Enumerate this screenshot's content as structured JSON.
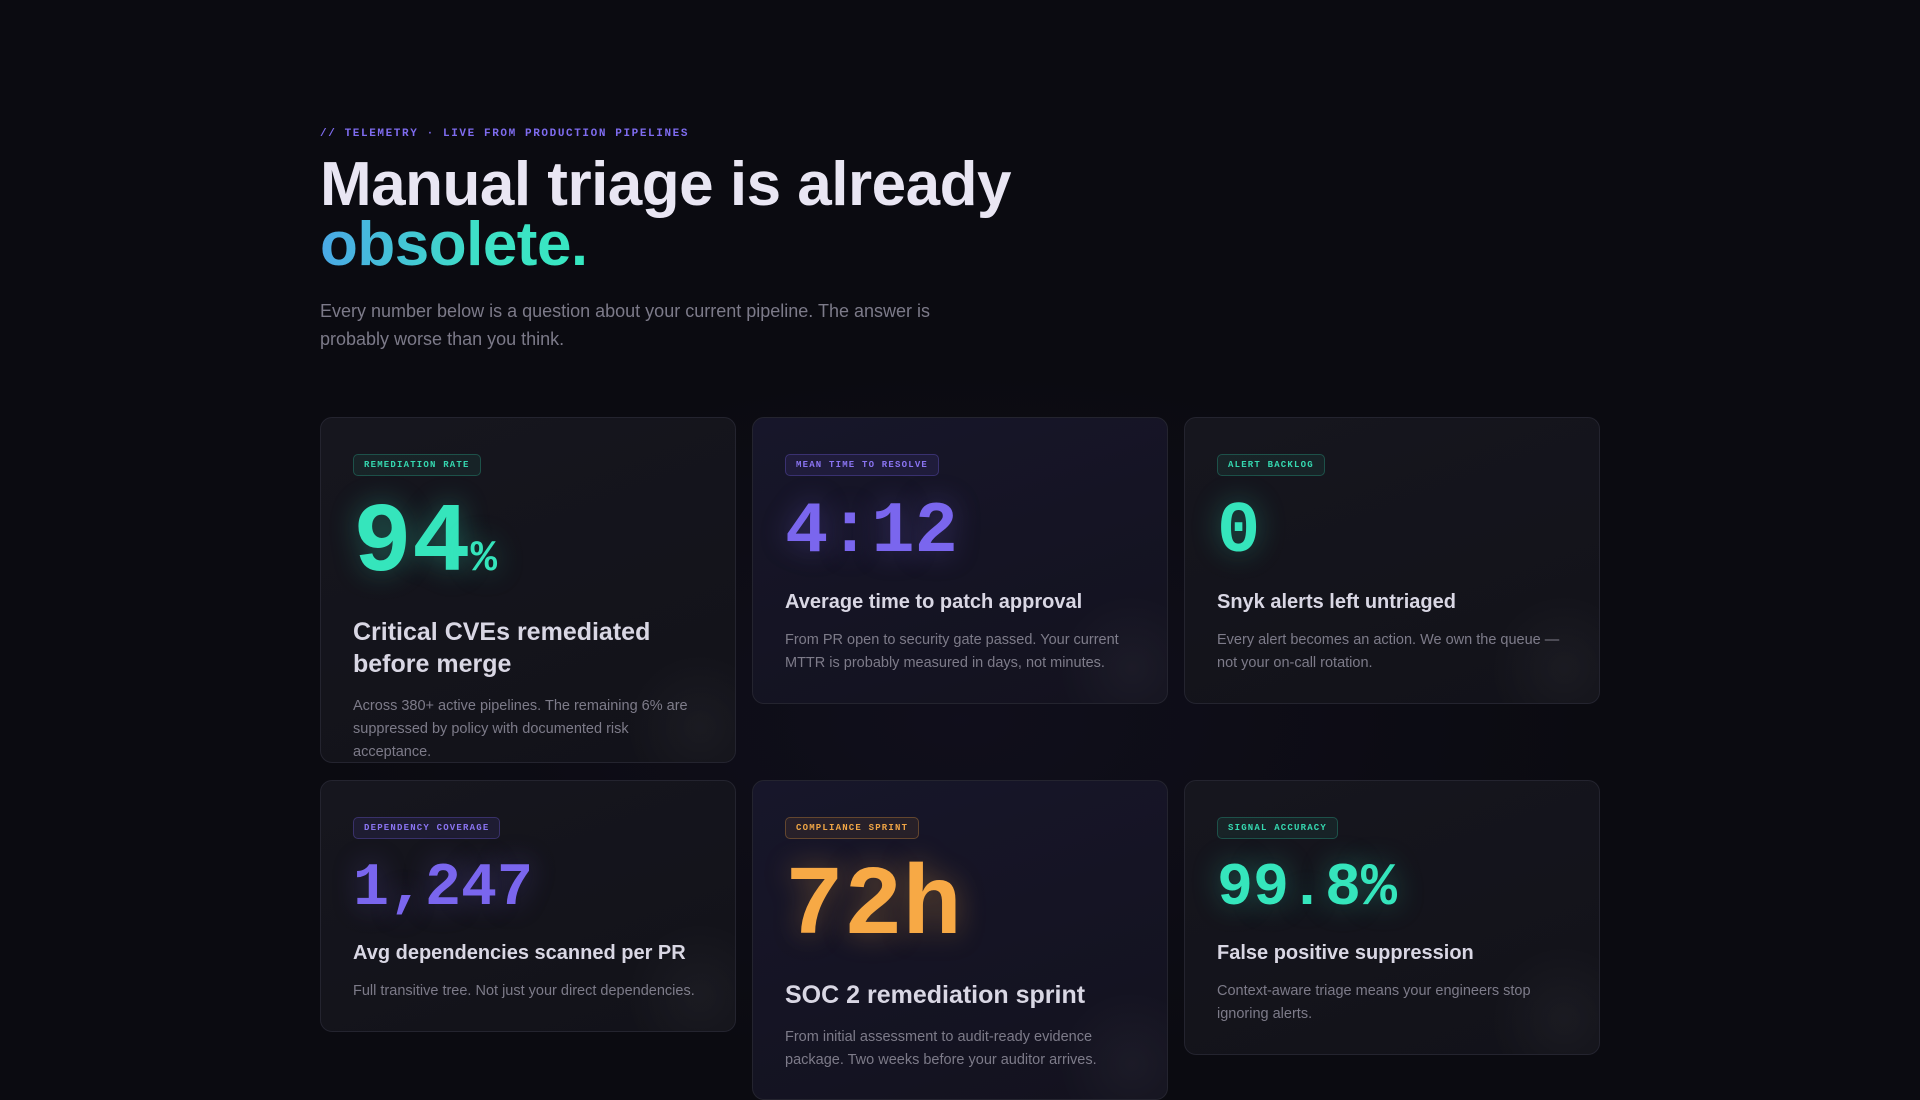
{
  "hero": {
    "eyebrow": "// TELEMETRY · LIVE FROM PRODUCTION PIPELINES",
    "title_line1": "Manual triage is already",
    "title_accent": "obsolete.",
    "lede": "Every number below is a question about your current pipeline. The answer is probably worse than you think."
  },
  "cards": [
    {
      "badge": "REMEDIATION RATE",
      "value": "94",
      "unit": "%",
      "title": "Critical CVEs remediated before merge",
      "desc": "Across 380+ active pipelines. The remaining 6% are suppressed by policy with documented risk acceptance.",
      "accent": "#35e5bc"
    },
    {
      "badge": "MEAN TIME TO RESOLVE",
      "value": "4:12",
      "title": "Average time to patch approval",
      "desc": "From PR open to security gate passed. Your current MTTR is probably measured in days, not minutes.",
      "accent": "#7a66ee"
    },
    {
      "badge": "ALERT BACKLOG",
      "value": "0",
      "title": "Snyk alerts left untriaged",
      "desc": "Every alert becomes an action. We own the queue — not your on-call rotation.",
      "accent": "#35e5bc"
    },
    {
      "badge": "DEPENDENCY COVERAGE",
      "value": "1,247",
      "title": "Avg dependencies scanned per PR",
      "desc": "Full transitive tree. Not just your direct dependencies.",
      "accent": "#7a66ee"
    },
    {
      "badge": "COMPLIANCE SPRINT",
      "value": "72h",
      "title": "SOC 2 remediation sprint",
      "desc": "From initial assessment to audit-ready evidence package. Two weeks before your auditor arrives.",
      "accent": "#f7a945"
    },
    {
      "badge": "SIGNAL ACCURACY",
      "value": "99.8%",
      "title": "False positive suppression",
      "desc": "Context-aware triage means your engineers stop ignoring alerts.",
      "accent": "#35e5bc"
    }
  ]
}
